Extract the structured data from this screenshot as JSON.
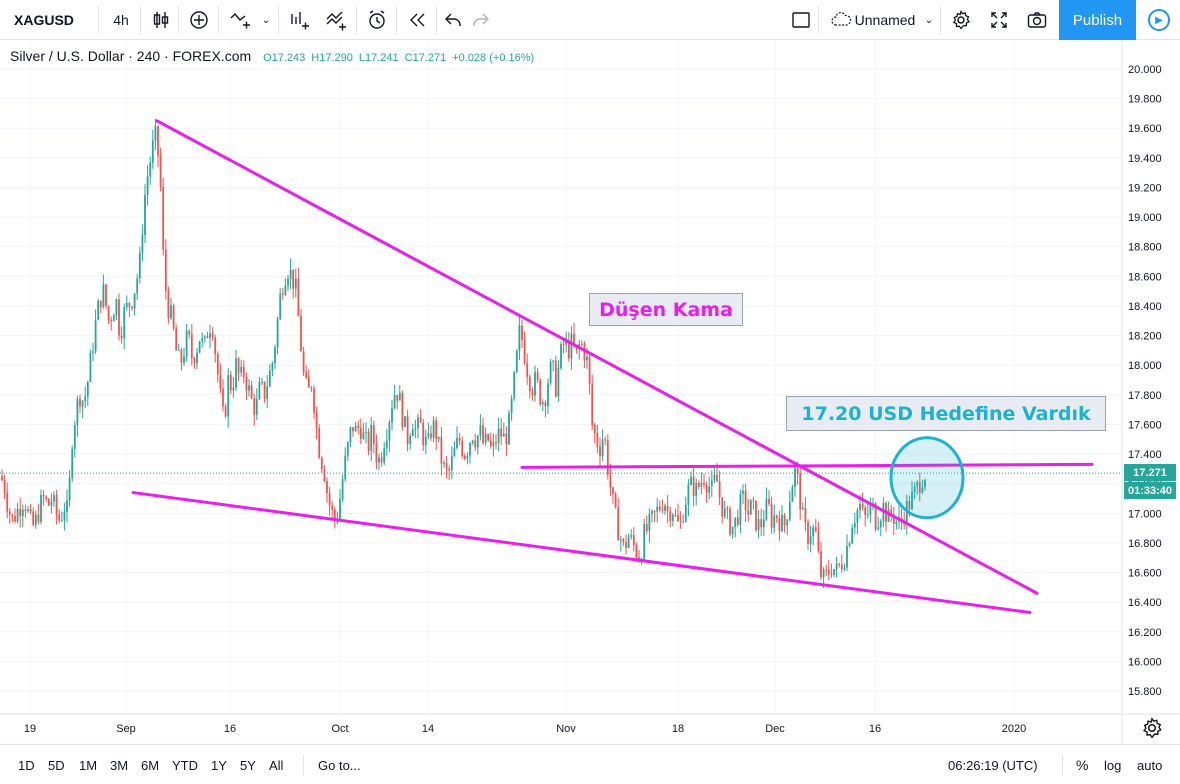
{
  "toolbar": {
    "symbol": "XAGUSD",
    "interval": "4h",
    "layout_name": "Unnamed",
    "publish": "Publish"
  },
  "legend": {
    "title": "Silver / U.S. Dollar · 240 · FOREX.com",
    "open": "O17.243",
    "high": "H17.290",
    "low": "L17.241",
    "close": "C17.271",
    "change": "+0.028 (+0.16%)"
  },
  "annotations": {
    "pattern_label": "Düşen Kama",
    "target_label": "17.20 USD Hedefine Vardık"
  },
  "price_axis": {
    "last_price": "17.271",
    "countdown": "01:33:40"
  },
  "bottom": {
    "ranges": [
      "1D",
      "5D",
      "1M",
      "3M",
      "6M",
      "YTD",
      "1Y",
      "5Y",
      "All"
    ],
    "goto": "Go to...",
    "clock": "06:26:19 (UTC)",
    "percent": "%",
    "log": "log",
    "auto": "auto"
  },
  "colors": {
    "up": "#26a69a",
    "down": "#ef5350",
    "trendline": "#e91ee9",
    "target_circle": "#1cb3cf",
    "accent": "#2196f3"
  },
  "chart_data": {
    "type": "candlestick",
    "symbol": "XAGUSD",
    "timeframe": "240",
    "ylim": [
      15.7,
      20.1
    ],
    "y_ticks": [
      15.8,
      16.0,
      16.2,
      16.4,
      16.6,
      16.8,
      17.0,
      17.2,
      17.4,
      17.6,
      17.8,
      18.0,
      18.2,
      18.4,
      18.6,
      18.8,
      19.0,
      19.2,
      19.4,
      19.6,
      19.8,
      20.0
    ],
    "x_tick_labels": [
      "19",
      "Sep",
      "16",
      "Oct",
      "14",
      "Nov",
      "18",
      "Dec",
      "16",
      "2020"
    ],
    "price_path": [
      [
        0,
        17.25
      ],
      [
        4,
        17.2
      ],
      [
        8,
        17.05
      ],
      [
        12,
        16.95
      ],
      [
        16,
        17.0
      ],
      [
        20,
        17.05
      ],
      [
        24,
        17.1
      ],
      [
        28,
        17.0
      ],
      [
        32,
        16.9
      ],
      [
        36,
        16.95
      ],
      [
        40,
        17.05
      ],
      [
        44,
        17.1
      ],
      [
        48,
        17.05
      ],
      [
        52,
        17.1
      ],
      [
        56,
        17.0
      ],
      [
        60,
        16.95
      ],
      [
        64,
        17.05
      ],
      [
        68,
        17.0
      ],
      [
        72,
        17.5
      ],
      [
        76,
        17.7
      ],
      [
        80,
        17.8
      ],
      [
        84,
        17.75
      ],
      [
        88,
        17.9
      ],
      [
        92,
        18.1
      ],
      [
        96,
        18.3
      ],
      [
        100,
        18.45
      ],
      [
        104,
        18.5
      ],
      [
        108,
        18.3
      ],
      [
        112,
        18.35
      ],
      [
        116,
        18.45
      ],
      [
        120,
        18.2
      ],
      [
        124,
        18.35
      ],
      [
        128,
        18.4
      ],
      [
        132,
        18.45
      ],
      [
        136,
        18.55
      ],
      [
        140,
        18.7
      ],
      [
        144,
        19.1
      ],
      [
        148,
        19.3
      ],
      [
        152,
        19.45
      ],
      [
        156,
        19.55
      ],
      [
        160,
        19.3
      ],
      [
        164,
        18.6
      ],
      [
        168,
        18.4
      ],
      [
        172,
        18.3
      ],
      [
        176,
        18.1
      ],
      [
        180,
        18.0
      ],
      [
        184,
        18.1
      ],
      [
        188,
        18.2
      ],
      [
        192,
        18.05
      ],
      [
        196,
        18.1
      ],
      [
        200,
        18.2
      ],
      [
        204,
        18.1
      ],
      [
        208,
        18.25
      ],
      [
        212,
        18.3
      ],
      [
        216,
        18.05
      ],
      [
        220,
        17.8
      ],
      [
        224,
        17.6
      ],
      [
        228,
        17.9
      ],
      [
        232,
        17.85
      ],
      [
        236,
        18.0
      ],
      [
        240,
        17.9
      ],
      [
        244,
        17.95
      ],
      [
        248,
        17.85
      ],
      [
        252,
        17.75
      ],
      [
        256,
        17.7
      ],
      [
        260,
        17.85
      ],
      [
        264,
        17.8
      ],
      [
        268,
        17.9
      ],
      [
        272,
        18.0
      ],
      [
        276,
        18.2
      ],
      [
        280,
        18.45
      ],
      [
        284,
        18.6
      ],
      [
        288,
        18.65
      ],
      [
        292,
        18.6
      ],
      [
        296,
        18.5
      ],
      [
        300,
        18.2
      ],
      [
        304,
        17.9
      ],
      [
        308,
        17.8
      ],
      [
        312,
        17.9
      ],
      [
        316,
        17.6
      ],
      [
        320,
        17.4
      ],
      [
        324,
        17.3
      ],
      [
        328,
        17.1
      ],
      [
        332,
        17.0
      ],
      [
        336,
        16.95
      ],
      [
        340,
        17.1
      ],
      [
        344,
        17.3
      ],
      [
        348,
        17.45
      ],
      [
        352,
        17.6
      ],
      [
        356,
        17.55
      ],
      [
        360,
        17.6
      ],
      [
        364,
        17.5
      ],
      [
        368,
        17.45
      ],
      [
        372,
        17.55
      ],
      [
        376,
        17.4
      ],
      [
        380,
        17.35
      ],
      [
        384,
        17.5
      ],
      [
        388,
        17.6
      ],
      [
        392,
        17.75
      ],
      [
        396,
        17.85
      ],
      [
        400,
        17.75
      ],
      [
        404,
        17.6
      ],
      [
        408,
        17.5
      ],
      [
        412,
        17.65
      ],
      [
        416,
        17.55
      ],
      [
        420,
        17.6
      ],
      [
        424,
        17.5
      ],
      [
        428,
        17.45
      ],
      [
        432,
        17.6
      ],
      [
        436,
        17.55
      ],
      [
        440,
        17.4
      ],
      [
        444,
        17.3
      ],
      [
        448,
        17.25
      ],
      [
        452,
        17.35
      ],
      [
        456,
        17.45
      ],
      [
        460,
        17.5
      ],
      [
        464,
        17.4
      ],
      [
        468,
        17.45
      ],
      [
        472,
        17.55
      ],
      [
        476,
        17.5
      ],
      [
        480,
        17.55
      ],
      [
        484,
        17.45
      ],
      [
        488,
        17.5
      ],
      [
        492,
        17.4
      ],
      [
        496,
        17.5
      ],
      [
        500,
        17.55
      ],
      [
        504,
        17.5
      ],
      [
        508,
        17.55
      ],
      [
        512,
        17.75
      ],
      [
        516,
        18.0
      ],
      [
        520,
        18.25
      ],
      [
        524,
        18.1
      ],
      [
        528,
        17.95
      ],
      [
        532,
        17.85
      ],
      [
        536,
        17.9
      ],
      [
        540,
        17.8
      ],
      [
        544,
        17.75
      ],
      [
        548,
        17.9
      ],
      [
        552,
        18.0
      ],
      [
        556,
        17.85
      ],
      [
        560,
        18.05
      ],
      [
        564,
        18.15
      ],
      [
        568,
        18.1
      ],
      [
        572,
        18.15
      ],
      [
        576,
        18.05
      ],
      [
        580,
        18.15
      ],
      [
        584,
        18.1
      ],
      [
        588,
        18.0
      ],
      [
        592,
        17.6
      ],
      [
        596,
        17.5
      ],
      [
        600,
        17.45
      ],
      [
        604,
        17.55
      ],
      [
        608,
        17.3
      ],
      [
        612,
        17.1
      ],
      [
        616,
        16.95
      ],
      [
        620,
        16.85
      ],
      [
        624,
        16.75
      ],
      [
        628,
        16.85
      ],
      [
        632,
        16.8
      ],
      [
        636,
        16.75
      ],
      [
        640,
        16.7
      ],
      [
        644,
        16.85
      ],
      [
        648,
        16.9
      ],
      [
        652,
        16.95
      ],
      [
        656,
        17.0
      ],
      [
        660,
        17.05
      ],
      [
        664,
        17.1
      ],
      [
        668,
        17.0
      ],
      [
        672,
        17.05
      ],
      [
        676,
        16.95
      ],
      [
        680,
        16.9
      ],
      [
        684,
        17.05
      ],
      [
        688,
        17.15
      ],
      [
        692,
        17.2
      ],
      [
        696,
        17.15
      ],
      [
        700,
        17.2
      ],
      [
        704,
        17.25
      ],
      [
        708,
        17.2
      ],
      [
        712,
        17.15
      ],
      [
        716,
        17.25
      ],
      [
        720,
        17.1
      ],
      [
        724,
        17.0
      ],
      [
        728,
        16.95
      ],
      [
        732,
        16.9
      ],
      [
        736,
        16.95
      ],
      [
        740,
        17.05
      ],
      [
        744,
        17.1
      ],
      [
        748,
        17.0
      ],
      [
        752,
        17.05
      ],
      [
        756,
        16.95
      ],
      [
        760,
        16.9
      ],
      [
        764,
        17.0
      ],
      [
        768,
        17.05
      ],
      [
        772,
        16.95
      ],
      [
        776,
        17.0
      ],
      [
        780,
        16.95
      ],
      [
        784,
        16.9
      ],
      [
        788,
        17.05
      ],
      [
        792,
        17.2
      ],
      [
        796,
        17.3
      ],
      [
        800,
        17.1
      ],
      [
        804,
        16.9
      ],
      [
        808,
        16.85
      ],
      [
        812,
        16.9
      ],
      [
        816,
        16.85
      ],
      [
        820,
        16.6
      ],
      [
        824,
        16.55
      ],
      [
        828,
        16.6
      ],
      [
        832,
        16.65
      ],
      [
        836,
        16.6
      ],
      [
        840,
        16.65
      ],
      [
        844,
        16.7
      ],
      [
        848,
        16.8
      ],
      [
        852,
        16.95
      ],
      [
        856,
        17.0
      ],
      [
        860,
        17.05
      ],
      [
        864,
        16.95
      ],
      [
        868,
        17.0
      ],
      [
        872,
        17.05
      ],
      [
        876,
        16.95
      ],
      [
        880,
        17.0
      ],
      [
        884,
        17.05
      ],
      [
        888,
        16.95
      ],
      [
        892,
        17.0
      ],
      [
        896,
        16.95
      ],
      [
        900,
        16.92
      ],
      [
        904,
        17.0
      ],
      [
        908,
        17.05
      ],
      [
        912,
        17.1
      ],
      [
        916,
        17.15
      ],
      [
        920,
        17.22
      ],
      [
        924,
        17.27
      ],
      [
        927,
        17.27
      ]
    ],
    "trendlines": [
      {
        "name": "upper-wedge",
        "from": [
          157,
          19.65
        ],
        "to": [
          1037,
          16.46
        ]
      },
      {
        "name": "lower-wedge",
        "from": [
          133,
          17.14
        ],
        "to": [
          1030,
          16.33
        ]
      },
      {
        "name": "target-level",
        "from": [
          522,
          17.31
        ],
        "to": [
          1092,
          17.33
        ]
      }
    ],
    "target_circle": {
      "center": [
        927,
        17.24
      ],
      "radius_x": 36,
      "radius_y": 40
    }
  }
}
